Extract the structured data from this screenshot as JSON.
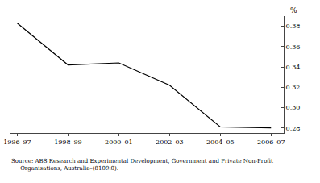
{
  "chart_data": {
    "type": "line",
    "x": [
      0,
      2,
      4,
      6,
      8,
      10
    ],
    "values": [
      0.383,
      0.342,
      0.344,
      0.322,
      0.281,
      0.28
    ],
    "color": "#000000",
    "xlim": [
      -0.3,
      10.5
    ],
    "xticks": [
      {
        "value": 0,
        "label": "1996–97"
      },
      {
        "value": 2,
        "label": "1998–99"
      },
      {
        "value": 4,
        "label": "2000–01"
      },
      {
        "value": 6,
        "label": "2002–03"
      },
      {
        "value": 8,
        "label": "2004–05"
      },
      {
        "value": 10,
        "label": "2006–07"
      }
    ],
    "ylim": [
      0.275,
      0.39
    ],
    "yticks": [
      0.28,
      {
        "value": 0.3,
        "label": "0.30"
      },
      0.32,
      0.34,
      0.36,
      0.38
    ],
    "ylabel": "%",
    "annotations": [
      "Source: ABS Research and Experimental Development, Government and Private Non-Profit",
      "Organisations, Australia–(8109.0)."
    ],
    "grid": false
  }
}
